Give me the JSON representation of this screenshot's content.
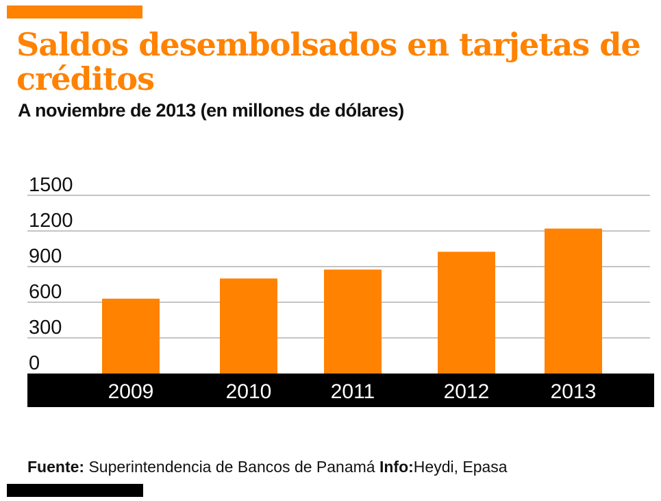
{
  "header": {
    "title": "Saldos desembolsados en tarjetas de créditos",
    "subtitle": "A noviembre de 2013 (en millones de dólares)"
  },
  "footer": {
    "source_label": "Fuente:",
    "source_text": "Superintendencia de Bancos de Panamá",
    "info_label": "Info:",
    "info_text": "Heydi, Epasa"
  },
  "colors": {
    "accent": "#ff8200",
    "black": "#000000",
    "grid": "#888888",
    "text": "#111111"
  },
  "chart_data": {
    "type": "bar",
    "categories": [
      "2009",
      "2010",
      "2011",
      "2012",
      "2013"
    ],
    "values": [
      630,
      800,
      875,
      1025,
      1220
    ],
    "yticks": [
      0,
      300,
      600,
      900,
      1200,
      1500
    ],
    "ylim": [
      0,
      1500
    ],
    "grid": true,
    "title": "",
    "xlabel": "",
    "ylabel": ""
  }
}
